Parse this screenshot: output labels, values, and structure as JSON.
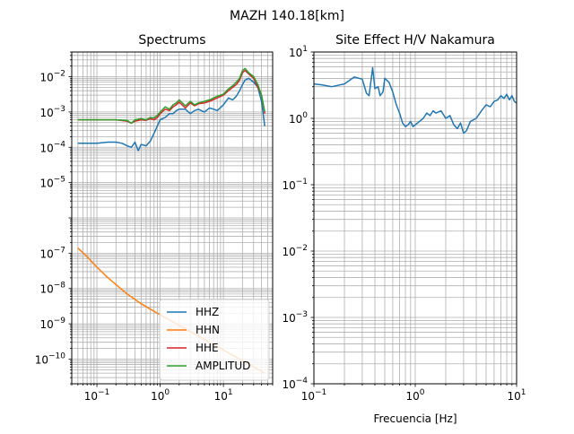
{
  "figure_title": "MAZH 140.18[km]",
  "chart_data": [
    {
      "type": "line",
      "title": "Spectrums",
      "xlabel": "",
      "ylabel": "",
      "xscale": "log",
      "yscale": "log",
      "xlim": [
        0.04,
        60
      ],
      "ylim": [
        2e-11,
        0.05
      ],
      "grid": true,
      "legend": "lower-right",
      "xticks": [
        {
          "v": 0.1,
          "b": "10",
          "e": "−1"
        },
        {
          "v": 1,
          "b": "10",
          "e": "0"
        },
        {
          "v": 10,
          "b": "10",
          "e": "1"
        }
      ],
      "yticks": [
        {
          "v": 1e-10,
          "b": "10",
          "e": "−10"
        },
        {
          "v": 1e-09,
          "b": "10",
          "e": "−9"
        },
        {
          "v": 1e-08,
          "b": "10",
          "e": "−8"
        },
        {
          "v": 1e-07,
          "b": "10",
          "e": "−7"
        },
        {
          "v": 1e-05,
          "b": "10",
          "e": "−5"
        },
        {
          "v": 0.0001,
          "b": "10",
          "e": "−4"
        },
        {
          "v": 0.001,
          "b": "10",
          "e": "−3"
        },
        {
          "v": 0.01,
          "b": "10",
          "e": "−2"
        }
      ],
      "series": [
        {
          "name": "HHZ",
          "color": "#1f77b4",
          "points": [
            [
              0.05,
              0.00013
            ],
            [
              0.1,
              0.00013
            ],
            [
              0.15,
              0.00014
            ],
            [
              0.2,
              0.00014
            ],
            [
              0.25,
              0.00013
            ],
            [
              0.3,
              0.00011
            ],
            [
              0.35,
              0.0001
            ],
            [
              0.4,
              0.00014
            ],
            [
              0.45,
              8e-05
            ],
            [
              0.5,
              0.00012
            ],
            [
              0.6,
              0.00011
            ],
            [
              0.7,
              0.00015
            ],
            [
              0.8,
              0.00025
            ],
            [
              0.9,
              0.0004
            ],
            [
              1,
              0.0006
            ],
            [
              1.2,
              0.0007
            ],
            [
              1.4,
              0.0009
            ],
            [
              1.6,
              0.0009
            ],
            [
              1.8,
              0.0011
            ],
            [
              2,
              0.0012
            ],
            [
              2.5,
              0.0012
            ],
            [
              3,
              0.0009
            ],
            [
              3.5,
              0.0011
            ],
            [
              4,
              0.0012
            ],
            [
              5,
              0.001
            ],
            [
              6,
              0.0013
            ],
            [
              7,
              0.0012
            ],
            [
              8,
              0.0011
            ],
            [
              10,
              0.0016
            ],
            [
              12,
              0.0025
            ],
            [
              14,
              0.0022
            ],
            [
              16,
              0.0028
            ],
            [
              18,
              0.004
            ],
            [
              20,
              0.006
            ],
            [
              22,
              0.008
            ],
            [
              25,
              0.009
            ],
            [
              30,
              0.007
            ],
            [
              35,
              0.005
            ],
            [
              40,
              0.002
            ],
            [
              45,
              0.0004
            ]
          ]
        },
        {
          "name": "HHN",
          "color": "#ff7f0e",
          "points": [
            [
              0.05,
              1.4e-07
            ],
            [
              0.07,
              8e-08
            ],
            [
              0.1,
              4e-08
            ],
            [
              0.15,
              2e-08
            ],
            [
              0.2,
              1.3e-08
            ],
            [
              0.3,
              7e-09
            ],
            [
              0.5,
              3.7e-09
            ],
            [
              0.7,
              2.6e-09
            ],
            [
              1,
              1.8e-09
            ],
            [
              1.5,
              1.2e-09
            ],
            [
              2,
              9e-10
            ],
            [
              3,
              6e-10
            ],
            [
              5,
              3.6e-10
            ],
            [
              10,
              1.8e-10
            ],
            [
              20,
              9e-11
            ],
            [
              30,
              6e-11
            ],
            [
              45,
              4e-11
            ]
          ]
        },
        {
          "name": "HHE",
          "color": "#d62728",
          "points": [
            [
              0.05,
              0.0006
            ],
            [
              0.1,
              0.0006
            ],
            [
              0.2,
              0.0006
            ],
            [
              0.3,
              0.00055
            ],
            [
              0.35,
              0.00048
            ],
            [
              0.4,
              0.00055
            ],
            [
              0.5,
              0.0006
            ],
            [
              0.6,
              0.00058
            ],
            [
              0.7,
              0.00065
            ],
            [
              0.8,
              0.0006
            ],
            [
              0.9,
              0.0007
            ],
            [
              1,
              0.0009
            ],
            [
              1.2,
              0.0012
            ],
            [
              1.4,
              0.0011
            ],
            [
              1.6,
              0.0014
            ],
            [
              1.8,
              0.0016
            ],
            [
              2,
              0.0019
            ],
            [
              2.5,
              0.0013
            ],
            [
              3,
              0.0018
            ],
            [
              3.5,
              0.0015
            ],
            [
              4,
              0.0017
            ],
            [
              5,
              0.0018
            ],
            [
              6,
              0.002
            ],
            [
              8,
              0.0025
            ],
            [
              10,
              0.003
            ],
            [
              12,
              0.004
            ],
            [
              14,
              0.005
            ],
            [
              16,
              0.006
            ],
            [
              18,
              0.008
            ],
            [
              20,
              0.013
            ],
            [
              22,
              0.015
            ],
            [
              25,
              0.012
            ],
            [
              30,
              0.009
            ],
            [
              35,
              0.005
            ],
            [
              40,
              0.003
            ],
            [
              45,
              0.0009
            ]
          ]
        },
        {
          "name": "AMPLITUD",
          "color": "#2ca02c",
          "points": [
            [
              0.05,
              0.0006
            ],
            [
              0.1,
              0.0006
            ],
            [
              0.2,
              0.0006
            ],
            [
              0.3,
              0.00058
            ],
            [
              0.35,
              0.00048
            ],
            [
              0.4,
              0.0006
            ],
            [
              0.5,
              0.00065
            ],
            [
              0.6,
              0.0006
            ],
            [
              0.7,
              0.0007
            ],
            [
              0.8,
              0.00068
            ],
            [
              0.9,
              0.0008
            ],
            [
              1,
              0.001
            ],
            [
              1.2,
              0.0014
            ],
            [
              1.4,
              0.0012
            ],
            [
              1.6,
              0.0016
            ],
            [
              1.8,
              0.0018
            ],
            [
              2,
              0.0022
            ],
            [
              2.5,
              0.0015
            ],
            [
              3,
              0.002
            ],
            [
              3.5,
              0.0016
            ],
            [
              4,
              0.0018
            ],
            [
              5,
              0.002
            ],
            [
              6,
              0.0022
            ],
            [
              8,
              0.0028
            ],
            [
              10,
              0.0032
            ],
            [
              12,
              0.0045
            ],
            [
              14,
              0.0055
            ],
            [
              16,
              0.007
            ],
            [
              18,
              0.009
            ],
            [
              20,
              0.015
            ],
            [
              22,
              0.017
            ],
            [
              25,
              0.013
            ],
            [
              30,
              0.01
            ],
            [
              35,
              0.006
            ],
            [
              40,
              0.003
            ],
            [
              45,
              0.001
            ]
          ]
        }
      ]
    },
    {
      "type": "line",
      "title": "Site Effect H/V Nakamura",
      "xlabel": "Frecuencia [Hz]",
      "ylabel": "",
      "xscale": "log",
      "yscale": "log",
      "xlim": [
        0.1,
        10
      ],
      "ylim": [
        0.0001,
        10
      ],
      "grid": true,
      "xticks": [
        {
          "v": 0.1,
          "b": "10",
          "e": "−1"
        },
        {
          "v": 1,
          "b": "10",
          "e": "0"
        },
        {
          "v": 10,
          "b": "10",
          "e": "1"
        }
      ],
      "yticks": [
        {
          "v": 0.0001,
          "b": "10",
          "e": "−4"
        },
        {
          "v": 0.001,
          "b": "10",
          "e": "−3"
        },
        {
          "v": 0.01,
          "b": "10",
          "e": "−2"
        },
        {
          "v": 0.1,
          "b": "10",
          "e": "−1"
        },
        {
          "v": 1,
          "b": "10",
          "e": "0"
        },
        {
          "v": 10,
          "b": "10",
          "e": "1"
        }
      ],
      "series": [
        {
          "color": "#1f77b4",
          "points": [
            [
              0.1,
              3.3
            ],
            [
              0.12,
              3.2
            ],
            [
              0.15,
              3.0
            ],
            [
              0.2,
              3.3
            ],
            [
              0.25,
              4.2
            ],
            [
              0.3,
              3.9
            ],
            [
              0.33,
              2.4
            ],
            [
              0.35,
              2.2
            ],
            [
              0.38,
              5.8
            ],
            [
              0.4,
              2.8
            ],
            [
              0.43,
              3.0
            ],
            [
              0.45,
              2.2
            ],
            [
              0.48,
              2.5
            ],
            [
              0.5,
              4.0
            ],
            [
              0.55,
              3.5
            ],
            [
              0.6,
              2.5
            ],
            [
              0.65,
              1.6
            ],
            [
              0.7,
              1.2
            ],
            [
              0.75,
              0.85
            ],
            [
              0.8,
              0.75
            ],
            [
              0.85,
              0.8
            ],
            [
              0.9,
              0.9
            ],
            [
              0.95,
              0.75
            ],
            [
              1.0,
              0.8
            ],
            [
              1.1,
              0.9
            ],
            [
              1.2,
              1.0
            ],
            [
              1.3,
              1.2
            ],
            [
              1.4,
              1.1
            ],
            [
              1.5,
              1.3
            ],
            [
              1.6,
              1.2
            ],
            [
              1.8,
              1.3
            ],
            [
              2.0,
              1.0
            ],
            [
              2.2,
              1.1
            ],
            [
              2.4,
              0.8
            ],
            [
              2.6,
              0.7
            ],
            [
              2.8,
              0.85
            ],
            [
              3.0,
              0.6
            ],
            [
              3.2,
              0.65
            ],
            [
              3.5,
              0.9
            ],
            [
              4.0,
              1.0
            ],
            [
              4.5,
              1.3
            ],
            [
              5.0,
              1.6
            ],
            [
              5.5,
              1.5
            ],
            [
              6.0,
              1.8
            ],
            [
              6.5,
              1.9
            ],
            [
              7.0,
              2.2
            ],
            [
              7.5,
              2.0
            ],
            [
              8.0,
              2.3
            ],
            [
              8.5,
              1.9
            ],
            [
              9.0,
              2.2
            ],
            [
              9.5,
              1.8
            ],
            [
              10.0,
              1.7
            ]
          ]
        }
      ]
    }
  ]
}
